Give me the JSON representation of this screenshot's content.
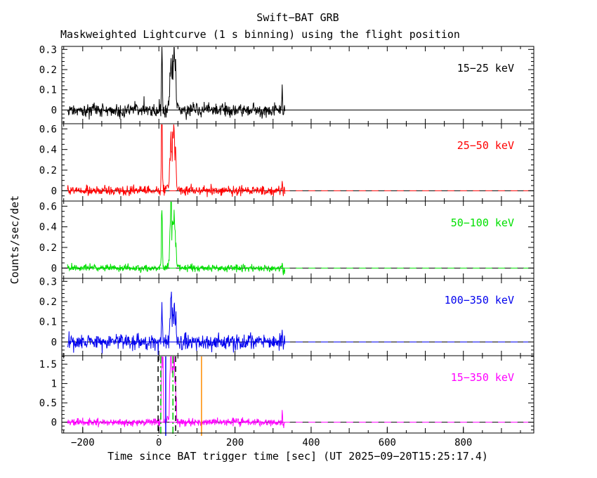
{
  "figure": {
    "title": "Swift−BAT GRB",
    "subtitle": "Maskweighted Lightcurve (1 s binning) using the flight position",
    "xlabel": "Time since BAT trigger time [sec] (UT 2025−09−20T15:25:17.4)",
    "ylabel": "Counts/sec/det",
    "background": "#ffffff",
    "trigger_time_label": "2025-09-20T15:25:17.4"
  },
  "chart_data": {
    "type": "line",
    "title": "Swift-BAT GRB Maskweighted Lightcurve (1 s binning) using the flight position",
    "xlabel": "Time since BAT trigger time [sec]",
    "ylabel": "Counts/sec/det",
    "x_axis": {
      "range": [
        -255,
        985
      ],
      "major_tick_step": 200,
      "labeled_ticks": [
        -200,
        0,
        200,
        400,
        600,
        800
      ],
      "frame_tick_step": 100,
      "minor_tick_step": 50
    },
    "data_time_range": [
      -240,
      331
    ],
    "grid": false,
    "legend": "panel-labels-right",
    "panels": [
      {
        "label": "15−25 keV",
        "energy_band": "15-25 keV",
        "color": "#000000",
        "ylim": [
          -0.068,
          0.315
        ],
        "yticks": [
          0,
          0.1,
          0.2,
          0.3
        ],
        "y_minor_step": 0.02,
        "noise_sigma": 0.018,
        "zero_line": "solid",
        "burst_peaks": [
          [
            8,
            0.3,
            1.2
          ],
          [
            29,
            0.1,
            1.2
          ],
          [
            32,
            0.24,
            1.2
          ],
          [
            36,
            0.16,
            1.3
          ],
          [
            40,
            0.26,
            1.5
          ],
          [
            44,
            0.14,
            1.5
          ],
          [
            36,
            0.05,
            8
          ],
          [
            324,
            0.13,
            0.7
          ],
          [
            327,
            -0.06,
            0.7
          ]
        ]
      },
      {
        "label": "25−50 keV",
        "energy_band": "25-50 keV",
        "color": "#ff0000",
        "ylim": [
          -0.1,
          0.65
        ],
        "yticks": [
          0,
          0.2,
          0.4,
          0.6
        ],
        "y_minor_step": 0.05,
        "noise_sigma": 0.024,
        "zero_line": "dashed",
        "burst_peaks": [
          [
            8,
            0.95,
            1.2
          ],
          [
            29,
            0.25,
            1.2
          ],
          [
            32,
            0.5,
            1.2
          ],
          [
            36,
            0.38,
            1.3
          ],
          [
            40,
            0.54,
            1.5
          ],
          [
            44,
            0.28,
            1.5
          ],
          [
            36,
            0.09,
            8
          ],
          [
            324,
            0.1,
            0.7
          ],
          [
            327,
            -0.05,
            0.7
          ]
        ]
      },
      {
        "label": "50−100 keV",
        "energy_band": "50-100 keV",
        "color": "#00e000",
        "ylim": [
          -0.1,
          0.65
        ],
        "yticks": [
          0,
          0.2,
          0.4,
          0.6
        ],
        "y_minor_step": 0.05,
        "noise_sigma": 0.018,
        "zero_line": "dashed",
        "burst_peaks": [
          [
            8,
            0.62,
            1.2
          ],
          [
            29,
            0.3,
            1.0
          ],
          [
            32,
            0.78,
            1.0
          ],
          [
            36,
            0.4,
            1.3
          ],
          [
            40,
            0.42,
            1.5
          ],
          [
            44,
            0.22,
            1.5
          ],
          [
            36,
            0.08,
            8
          ],
          [
            324,
            0.08,
            0.7
          ],
          [
            327,
            -0.05,
            0.7
          ]
        ]
      },
      {
        "label": "100−350 keV",
        "energy_band": "100-350 keV",
        "color": "#0000ee",
        "ylim": [
          -0.068,
          0.315
        ],
        "yticks": [
          0,
          0.1,
          0.2,
          0.3
        ],
        "y_minor_step": 0.02,
        "noise_sigma": 0.02,
        "zero_line": "dashed",
        "burst_peaks": [
          [
            8,
            0.19,
            1.2
          ],
          [
            29,
            0.08,
            1.2
          ],
          [
            32,
            0.34,
            1.0
          ],
          [
            36,
            0.12,
            1.3
          ],
          [
            40,
            0.15,
            1.5
          ],
          [
            44,
            0.08,
            1.5
          ],
          [
            36,
            0.03,
            8
          ],
          [
            324,
            0.05,
            0.7
          ],
          [
            327,
            -0.04,
            0.7
          ]
        ]
      },
      {
        "label": "15−350 keV",
        "energy_band": "15-350 keV",
        "color": "#ff00ff",
        "ylim": [
          -0.28,
          1.72
        ],
        "yticks": [
          0,
          0.5,
          1,
          1.5
        ],
        "y_minor_step": 0.1,
        "noise_sigma": 0.05,
        "zero_line": "dashed",
        "burst_peaks": [
          [
            8,
            2.6,
            1.2
          ],
          [
            11,
            1.6,
            0.8
          ],
          [
            29,
            0.9,
            1.2
          ],
          [
            32,
            2.0,
            1.2
          ],
          [
            36,
            1.2,
            1.3
          ],
          [
            40,
            1.55,
            1.5
          ],
          [
            44,
            0.85,
            1.5
          ],
          [
            36,
            0.25,
            8
          ],
          [
            324,
            0.28,
            0.7
          ],
          [
            327,
            -0.15,
            0.7
          ]
        ]
      }
    ],
    "markers_bottom_panel": [
      {
        "t": -2,
        "color": "#000000",
        "style": "dashed"
      },
      {
        "t": 5,
        "color": "#00c800",
        "style": "dash-dot"
      },
      {
        "t": 18,
        "color": "#0000ee",
        "style": "solid"
      },
      {
        "t": 37,
        "color": "#00c800",
        "style": "dash-dot"
      },
      {
        "t": 44,
        "color": "#000000",
        "style": "dashed"
      },
      {
        "t": 112,
        "color": "#ff8c00",
        "style": "solid"
      }
    ]
  }
}
